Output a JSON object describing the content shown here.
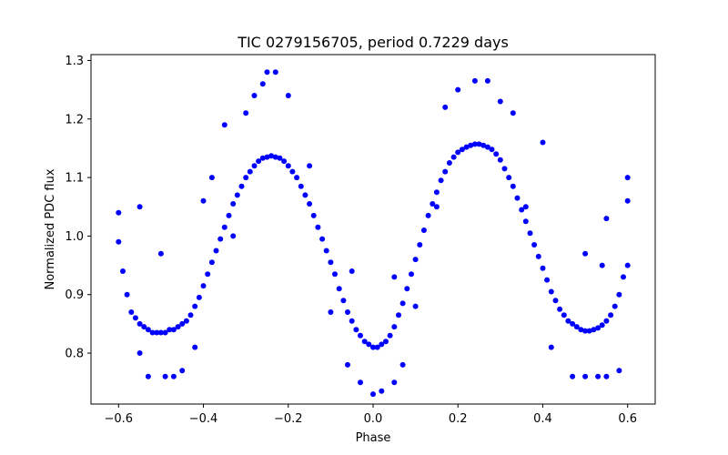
{
  "chart_data": {
    "type": "scatter",
    "title": "TIC 0279156705, period 0.7229 days",
    "xlabel": "Phase",
    "ylabel": "Normalized PDC flux",
    "xlim": [
      -0.665,
      0.665
    ],
    "ylim": [
      0.713,
      1.31
    ],
    "xticks": [
      -0.6,
      -0.4,
      -0.2,
      0.0,
      0.2,
      0.4,
      0.6
    ],
    "xtick_labels": [
      "−0.6",
      "−0.4",
      "−0.2",
      "0.0",
      "0.2",
      "0.4",
      "0.6"
    ],
    "yticks": [
      0.8,
      0.9,
      1.0,
      1.1,
      1.2,
      1.3
    ],
    "ytick_labels": [
      "0.8",
      "0.9",
      "1.0",
      "1.1",
      "1.2",
      "1.3"
    ],
    "grid": false,
    "legend": "none",
    "marker_color": "#0000ff",
    "series": [
      {
        "values": [
          [
            -0.6,
            0.99
          ],
          [
            -0.59,
            0.94
          ],
          [
            -0.58,
            0.9
          ],
          [
            -0.57,
            0.87
          ],
          [
            -0.56,
            0.86
          ],
          [
            -0.55,
            0.85
          ],
          [
            -0.54,
            0.845
          ],
          [
            -0.53,
            0.84
          ],
          [
            -0.52,
            0.835
          ],
          [
            -0.51,
            0.835
          ],
          [
            -0.5,
            0.835
          ],
          [
            -0.49,
            0.835
          ],
          [
            -0.48,
            0.84
          ],
          [
            -0.47,
            0.84
          ],
          [
            -0.46,
            0.845
          ],
          [
            -0.45,
            0.85
          ],
          [
            -0.44,
            0.855
          ],
          [
            -0.43,
            0.865
          ],
          [
            -0.42,
            0.88
          ],
          [
            -0.41,
            0.895
          ],
          [
            -0.4,
            0.915
          ],
          [
            -0.39,
            0.935
          ],
          [
            -0.38,
            0.955
          ],
          [
            -0.37,
            0.975
          ],
          [
            -0.36,
            0.995
          ],
          [
            -0.35,
            1.015
          ],
          [
            -0.34,
            1.035
          ],
          [
            -0.33,
            1.055
          ],
          [
            -0.32,
            1.07
          ],
          [
            -0.31,
            1.085
          ],
          [
            -0.3,
            1.1
          ],
          [
            -0.29,
            1.11
          ],
          [
            -0.28,
            1.12
          ],
          [
            -0.27,
            1.128
          ],
          [
            -0.26,
            1.133
          ],
          [
            -0.25,
            1.135
          ],
          [
            -0.24,
            1.137
          ],
          [
            -0.23,
            1.135
          ],
          [
            -0.22,
            1.133
          ],
          [
            -0.21,
            1.128
          ],
          [
            -0.2,
            1.12
          ],
          [
            -0.19,
            1.11
          ],
          [
            -0.18,
            1.1
          ],
          [
            -0.17,
            1.085
          ],
          [
            -0.16,
            1.07
          ],
          [
            -0.15,
            1.055
          ],
          [
            -0.14,
            1.035
          ],
          [
            -0.13,
            1.015
          ],
          [
            -0.12,
            0.995
          ],
          [
            -0.11,
            0.975
          ],
          [
            -0.1,
            0.955
          ],
          [
            -0.09,
            0.935
          ],
          [
            -0.08,
            0.91
          ],
          [
            -0.07,
            0.89
          ],
          [
            -0.06,
            0.87
          ],
          [
            -0.05,
            0.855
          ],
          [
            -0.04,
            0.84
          ],
          [
            -0.03,
            0.83
          ],
          [
            -0.02,
            0.82
          ],
          [
            -0.01,
            0.815
          ],
          [
            0.0,
            0.81
          ],
          [
            0.01,
            0.81
          ],
          [
            0.02,
            0.815
          ],
          [
            0.03,
            0.82
          ],
          [
            0.04,
            0.83
          ],
          [
            0.05,
            0.845
          ],
          [
            0.06,
            0.865
          ],
          [
            0.07,
            0.885
          ],
          [
            0.08,
            0.91
          ],
          [
            0.09,
            0.935
          ],
          [
            0.1,
            0.96
          ],
          [
            0.11,
            0.985
          ],
          [
            0.12,
            1.01
          ],
          [
            0.13,
            1.035
          ],
          [
            0.14,
            1.055
          ],
          [
            0.15,
            1.075
          ],
          [
            0.16,
            1.095
          ],
          [
            0.17,
            1.11
          ],
          [
            0.18,
            1.125
          ],
          [
            0.19,
            1.135
          ],
          [
            0.2,
            1.143
          ],
          [
            0.21,
            1.148
          ],
          [
            0.22,
            1.152
          ],
          [
            0.23,
            1.155
          ],
          [
            0.24,
            1.157
          ],
          [
            0.25,
            1.157
          ],
          [
            0.26,
            1.155
          ],
          [
            0.27,
            1.152
          ],
          [
            0.28,
            1.148
          ],
          [
            0.29,
            1.14
          ],
          [
            0.3,
            1.13
          ],
          [
            0.31,
            1.115
          ],
          [
            0.32,
            1.1
          ],
          [
            0.33,
            1.085
          ],
          [
            0.34,
            1.065
          ],
          [
            0.35,
            1.045
          ],
          [
            0.36,
            1.025
          ],
          [
            0.37,
            1.005
          ],
          [
            0.38,
            0.985
          ],
          [
            0.39,
            0.965
          ],
          [
            0.4,
            0.945
          ],
          [
            0.41,
            0.925
          ],
          [
            0.42,
            0.905
          ],
          [
            0.43,
            0.89
          ],
          [
            0.44,
            0.875
          ],
          [
            0.45,
            0.865
          ],
          [
            0.46,
            0.855
          ],
          [
            0.47,
            0.85
          ],
          [
            0.48,
            0.845
          ],
          [
            0.49,
            0.84
          ],
          [
            0.5,
            0.838
          ],
          [
            0.51,
            0.838
          ],
          [
            0.52,
            0.84
          ],
          [
            0.53,
            0.843
          ],
          [
            0.54,
            0.848
          ],
          [
            0.55,
            0.855
          ],
          [
            0.56,
            0.865
          ],
          [
            0.57,
            0.88
          ],
          [
            0.58,
            0.9
          ],
          [
            0.59,
            0.93
          ],
          [
            0.6,
            0.95
          ],
          [
            -0.25,
            1.28
          ],
          [
            -0.23,
            1.28
          ],
          [
            -0.26,
            1.26
          ],
          [
            -0.28,
            1.24
          ],
          [
            -0.2,
            1.24
          ],
          [
            -0.3,
            1.21
          ],
          [
            -0.35,
            1.19
          ],
          [
            0.24,
            1.265
          ],
          [
            0.27,
            1.265
          ],
          [
            0.2,
            1.25
          ],
          [
            0.3,
            1.23
          ],
          [
            0.17,
            1.22
          ],
          [
            0.33,
            1.21
          ],
          [
            0.4,
            1.16
          ],
          [
            0.6,
            1.1
          ],
          [
            0.6,
            1.06
          ],
          [
            -0.6,
            1.04
          ],
          [
            -0.55,
            1.05
          ],
          [
            0.55,
            1.03
          ],
          [
            0.54,
            0.95
          ],
          [
            -0.38,
            1.1
          ],
          [
            -0.4,
            1.06
          ],
          [
            -0.03,
            0.75
          ],
          [
            0.0,
            0.73
          ],
          [
            0.02,
            0.735
          ],
          [
            0.05,
            0.75
          ],
          [
            -0.55,
            0.8
          ],
          [
            -0.53,
            0.76
          ],
          [
            -0.49,
            0.76
          ],
          [
            -0.47,
            0.76
          ],
          [
            -0.45,
            0.77
          ],
          [
            0.47,
            0.76
          ],
          [
            0.5,
            0.76
          ],
          [
            0.53,
            0.76
          ],
          [
            0.55,
            0.76
          ],
          [
            0.58,
            0.77
          ],
          [
            -0.42,
            0.81
          ],
          [
            0.42,
            0.81
          ],
          [
            -0.06,
            0.78
          ],
          [
            0.07,
            0.78
          ],
          [
            -0.1,
            0.87
          ],
          [
            0.1,
            0.88
          ],
          [
            -0.15,
            1.12
          ],
          [
            0.15,
            1.05
          ],
          [
            0.36,
            1.05
          ],
          [
            -0.33,
            1.0
          ],
          [
            0.5,
            0.97
          ],
          [
            -0.5,
            0.97
          ],
          [
            0.05,
            0.93
          ],
          [
            -0.05,
            0.94
          ]
        ]
      }
    ]
  }
}
